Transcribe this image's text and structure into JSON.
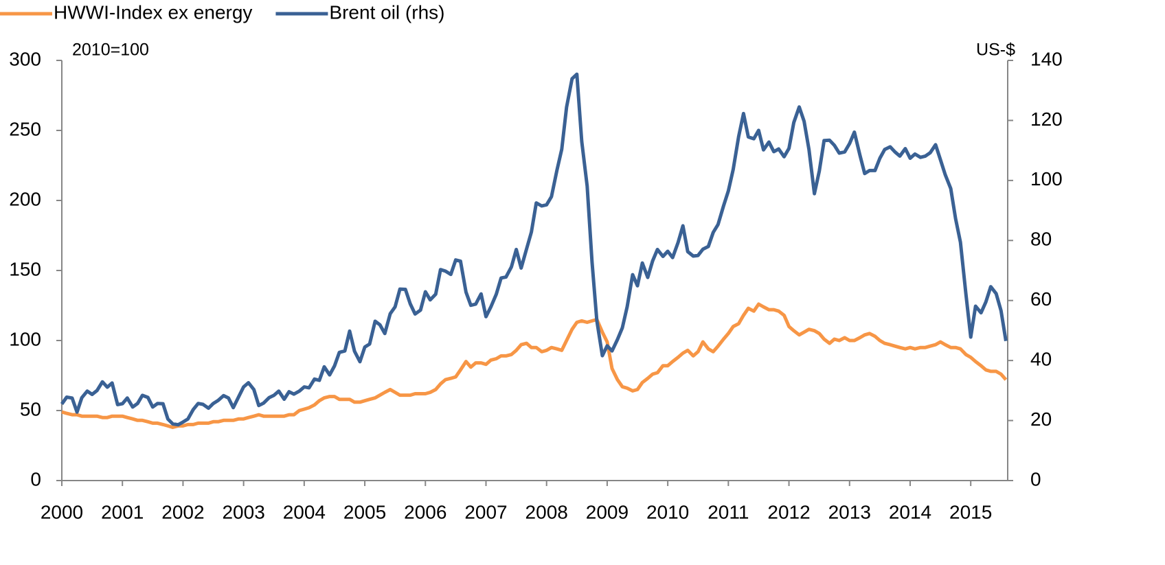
{
  "chart_data": {
    "type": "line",
    "y_label": "2010=100",
    "y2_label": "US-$",
    "x": [
      2000,
      2000.08,
      2000.17,
      2000.25,
      2000.33,
      2000.42,
      2000.5,
      2000.58,
      2000.67,
      2000.75,
      2000.83,
      2000.92,
      2001,
      2001.08,
      2001.17,
      2001.25,
      2001.33,
      2001.42,
      2001.5,
      2001.58,
      2001.67,
      2001.75,
      2001.83,
      2001.92,
      2002,
      2002.08,
      2002.17,
      2002.25,
      2002.33,
      2002.42,
      2002.5,
      2002.58,
      2002.67,
      2002.75,
      2002.83,
      2002.92,
      2003,
      2003.08,
      2003.17,
      2003.25,
      2003.33,
      2003.42,
      2003.5,
      2003.58,
      2003.67,
      2003.75,
      2003.83,
      2003.92,
      2004,
      2004.08,
      2004.17,
      2004.25,
      2004.33,
      2004.42,
      2004.5,
      2004.58,
      2004.67,
      2004.75,
      2004.83,
      2004.92,
      2005,
      2005.08,
      2005.17,
      2005.25,
      2005.33,
      2005.42,
      2005.5,
      2005.58,
      2005.67,
      2005.75,
      2005.83,
      2005.92,
      2006,
      2006.08,
      2006.17,
      2006.25,
      2006.33,
      2006.42,
      2006.5,
      2006.58,
      2006.67,
      2006.75,
      2006.83,
      2006.92,
      2007,
      2007.08,
      2007.17,
      2007.25,
      2007.33,
      2007.42,
      2007.5,
      2007.58,
      2007.67,
      2007.75,
      2007.83,
      2007.92,
      2008,
      2008.08,
      2008.17,
      2008.25,
      2008.33,
      2008.42,
      2008.5,
      2008.58,
      2008.67,
      2008.75,
      2008.83,
      2008.92,
      2009,
      2009.08,
      2009.17,
      2009.25,
      2009.33,
      2009.42,
      2009.5,
      2009.58,
      2009.67,
      2009.75,
      2009.83,
      2009.92,
      2010,
      2010.08,
      2010.17,
      2010.25,
      2010.33,
      2010.42,
      2010.5,
      2010.58,
      2010.67,
      2010.75,
      2010.83,
      2010.92,
      2011,
      2011.08,
      2011.17,
      2011.25,
      2011.33,
      2011.42,
      2011.5,
      2011.58,
      2011.67,
      2011.75,
      2011.83,
      2011.92,
      2012,
      2012.08,
      2012.17,
      2012.25,
      2012.33,
      2012.42,
      2012.5,
      2012.58,
      2012.67,
      2012.75,
      2012.83,
      2012.92,
      2013,
      2013.08,
      2013.17,
      2013.25,
      2013.33,
      2013.42,
      2013.5,
      2013.58,
      2013.67,
      2013.75,
      2013.83,
      2013.92,
      2014,
      2014.08,
      2014.17,
      2014.25,
      2014.33,
      2014.42,
      2014.5,
      2014.58,
      2014.67,
      2014.75,
      2014.83,
      2014.92,
      2015,
      2015.08,
      2015.17,
      2015.25,
      2015.33,
      2015.42,
      2015.5,
      2015.58
    ],
    "series": [
      {
        "name": "HWWI-Index ex energy",
        "color": "#f79646",
        "values": [
          49,
          48,
          47,
          47,
          46,
          46,
          46,
          46,
          45,
          45,
          46,
          46,
          46,
          45,
          44,
          43,
          43,
          42,
          41,
          41,
          40,
          39,
          38,
          39,
          39,
          40,
          40,
          41,
          41,
          41,
          42,
          42,
          43,
          43,
          43,
          44,
          44,
          45,
          46,
          47,
          46,
          46,
          46,
          46,
          46,
          47,
          47,
          50,
          51,
          52,
          54,
          57,
          59,
          60,
          60,
          58,
          58,
          58,
          56,
          56,
          57,
          58,
          59,
          61,
          63,
          65,
          63,
          61,
          61,
          61,
          62,
          62,
          62,
          63,
          65,
          69,
          72,
          73,
          74,
          79,
          85,
          81,
          84,
          84,
          83,
          86,
          87,
          89,
          89,
          90,
          93,
          97,
          98,
          95,
          95,
          92,
          93,
          95,
          94,
          93,
          100,
          108,
          113,
          114,
          113,
          114,
          115,
          106,
          99,
          80,
          72,
          67,
          66,
          64,
          65,
          70,
          73,
          76,
          77,
          82,
          82,
          85,
          88,
          91,
          93,
          89,
          92,
          99,
          94,
          92,
          96,
          101,
          105,
          110,
          112,
          118,
          123,
          121,
          126,
          124,
          122,
          122,
          121,
          118,
          110,
          107,
          104,
          106,
          108,
          107,
          105,
          101,
          98,
          101,
          100,
          102,
          100,
          100,
          102,
          104,
          105,
          103,
          100,
          98,
          97,
          96,
          95,
          94,
          95,
          94,
          95,
          95,
          96,
          97,
          99,
          97,
          95,
          95,
          94,
          90,
          88,
          85,
          82,
          79,
          78,
          78,
          76,
          72
        ]
      },
      {
        "name": "Brent oil (rhs)",
        "color": "#3a6194",
        "axis": "y2",
        "values": [
          25.5,
          27.8,
          27.5,
          22.8,
          27.6,
          29.8,
          28.7,
          30.0,
          32.9,
          31.1,
          32.5,
          25.3,
          25.6,
          27.5,
          24.5,
          25.7,
          28.4,
          27.7,
          24.5,
          25.7,
          25.6,
          20.5,
          18.9,
          18.6,
          19.5,
          20.5,
          23.7,
          25.7,
          25.4,
          24.1,
          25.7,
          26.7,
          28.3,
          27.5,
          24.3,
          28.0,
          31.2,
          32.6,
          30.3,
          25.0,
          25.8,
          27.6,
          28.4,
          29.8,
          27.1,
          29.6,
          28.8,
          29.8,
          31.2,
          30.9,
          33.8,
          33.4,
          37.9,
          35.2,
          38.2,
          42.7,
          43.2,
          49.8,
          43.1,
          39.6,
          44.5,
          45.5,
          53.1,
          51.9,
          49.0,
          55.6,
          57.9,
          63.8,
          63.7,
          58.9,
          55.5,
          56.8,
          62.9,
          60.2,
          62.1,
          70.3,
          69.8,
          68.7,
          73.5,
          73.1,
          62.8,
          58.4,
          58.8,
          62.2,
          54.6,
          57.8,
          62.1,
          67.5,
          67.8,
          71.2,
          77.0,
          70.8,
          77.2,
          82.8,
          92.5,
          91.5,
          91.9,
          94.6,
          103.3,
          110.4,
          124.4,
          133.9,
          135.4,
          113.0,
          98.1,
          72.8,
          53.2,
          41.6,
          44.9,
          43.2,
          47.0,
          50.9,
          57.9,
          68.6,
          64.9,
          72.5,
          67.7,
          73.2,
          77.0,
          74.7,
          76.4,
          74.3,
          79.3,
          84.9,
          76.3,
          74.8,
          75.0,
          77.1,
          78.0,
          82.7,
          85.3,
          91.5,
          96.5,
          103.7,
          114.6,
          122.3,
          114.5,
          113.9,
          116.7,
          110.2,
          112.8,
          109.6,
          110.5,
          107.9,
          110.7,
          119.3,
          124.5,
          119.7,
          110.3,
          95.6,
          103.1,
          113.3,
          113.4,
          111.7,
          109.1,
          109.5,
          112.3,
          116.1,
          108.5,
          102.3,
          103.3,
          103.3,
          107.4,
          110.3,
          111.2,
          109.5,
          108.1,
          110.6,
          107.4,
          108.8,
          107.7,
          108.1,
          109.2,
          111.9,
          106.9,
          101.9,
          97.3,
          87.3,
          79.4,
          62.3,
          47.8,
          58.1,
          55.9,
          59.5,
          64.6,
          62.3,
          56.6,
          46.5
        ]
      }
    ],
    "xlim": [
      2000,
      2015.61
    ],
    "xticks": [
      2000,
      2001,
      2002,
      2003,
      2004,
      2005,
      2006,
      2007,
      2008,
      2009,
      2010,
      2011,
      2012,
      2013,
      2014,
      2015
    ],
    "ylim": [
      0,
      300
    ],
    "yticks": [
      0,
      50,
      100,
      150,
      200,
      250,
      300
    ],
    "y2lim": [
      0,
      140
    ],
    "y2ticks": [
      0,
      20,
      40,
      60,
      80,
      100,
      120,
      140
    ],
    "legend": "top-left"
  }
}
